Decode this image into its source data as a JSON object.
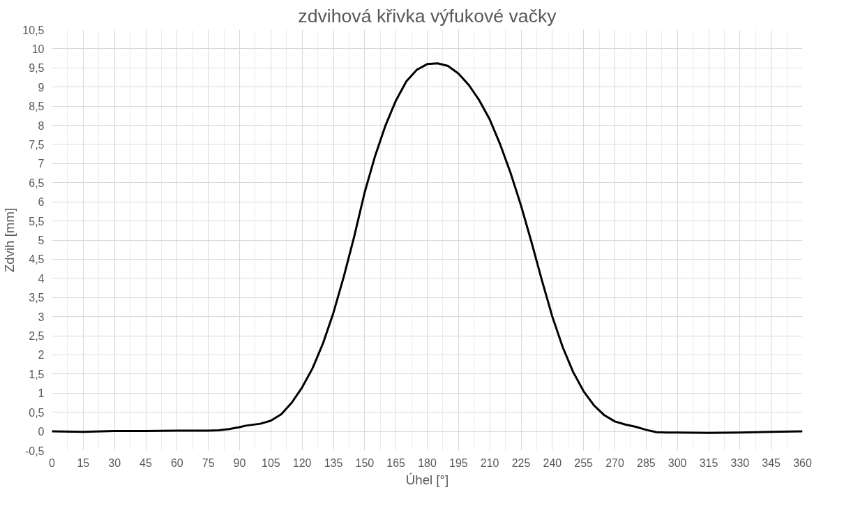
{
  "chart_data": {
    "type": "line",
    "title": "zdvihová křivka výfukové vačky",
    "xlabel": "Úhel [°]",
    "ylabel": "Zdvih [mm]",
    "x": [
      0,
      15,
      30,
      45,
      60,
      75,
      80,
      85,
      90,
      93,
      100,
      105,
      110,
      115,
      120,
      125,
      130,
      135,
      140,
      145,
      150,
      155,
      160,
      165,
      170,
      175,
      180,
      185,
      190,
      195,
      200,
      205,
      210,
      215,
      220,
      225,
      230,
      235,
      240,
      245,
      250,
      255,
      260,
      265,
      270,
      275,
      280,
      285,
      290,
      295,
      300,
      315,
      330,
      345,
      360
    ],
    "series": [
      {
        "color": "#000000",
        "values": [
          0,
          -0.01,
          0.01,
          0.01,
          0.02,
          0.02,
          0.03,
          0.06,
          0.11,
          0.15,
          0.2,
          0.28,
          0.45,
          0.75,
          1.15,
          1.65,
          2.3,
          3.1,
          4.05,
          5.1,
          6.25,
          7.2,
          8.0,
          8.65,
          9.15,
          9.45,
          9.6,
          9.62,
          9.55,
          9.35,
          9.05,
          8.65,
          8.15,
          7.5,
          6.75,
          5.9,
          4.95,
          3.95,
          3.0,
          2.2,
          1.55,
          1.05,
          0.68,
          0.42,
          0.26,
          0.18,
          0.12,
          0.04,
          -0.02,
          -0.03,
          -0.03,
          -0.04,
          -0.03,
          -0.01,
          0
        ]
      }
    ],
    "xlim": [
      0,
      360
    ],
    "xticks": [
      0,
      15,
      30,
      45,
      60,
      75,
      90,
      105,
      120,
      135,
      150,
      165,
      180,
      195,
      210,
      225,
      240,
      255,
      270,
      285,
      300,
      315,
      330,
      345,
      360
    ],
    "ylim": [
      -0.5,
      10.5
    ],
    "yticks": [
      {
        "value": -0.5,
        "label": "-0,5"
      },
      0,
      {
        "value": 0.5,
        "label": "0,5"
      },
      1,
      {
        "value": 1.5,
        "label": "1,5"
      },
      2,
      {
        "value": 2.5,
        "label": "2,5"
      },
      3,
      {
        "value": 3.5,
        "label": "3,5"
      },
      4,
      {
        "value": 4.5,
        "label": "4,5"
      },
      5,
      {
        "value": 5.5,
        "label": "5,5"
      },
      6,
      {
        "value": 6.5,
        "label": "6,5"
      },
      7,
      {
        "value": 7.5,
        "label": "7,5"
      },
      8,
      {
        "value": 8.5,
        "label": "8,5"
      },
      9,
      {
        "value": 9.5,
        "label": "9,5"
      },
      10,
      {
        "value": 10.5,
        "label": "10,5"
      }
    ],
    "grid": true,
    "marker": "none",
    "line_style": "solid"
  }
}
